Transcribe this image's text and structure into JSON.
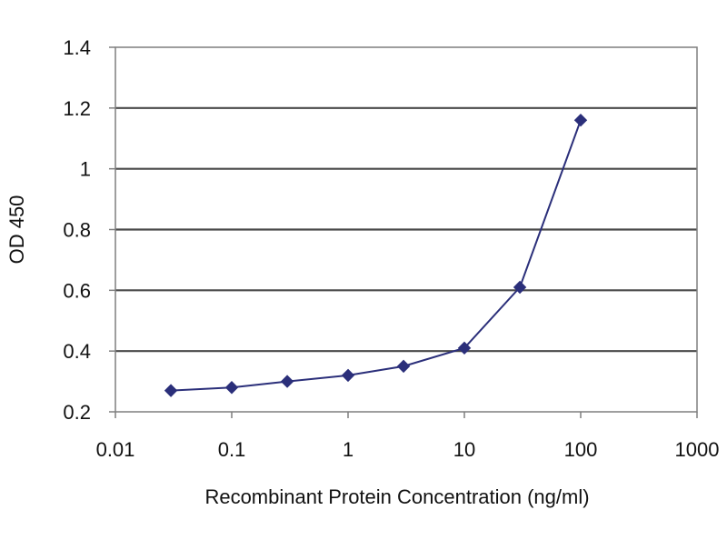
{
  "chart_data": {
    "type": "line",
    "title": "",
    "xlabel": "Recombinant Protein Concentration (ng/ml)",
    "ylabel": "OD 450",
    "xscale": "log",
    "xlim": [
      0.01,
      1000
    ],
    "ylim": [
      0.2,
      1.4
    ],
    "xticks": [
      0.01,
      0.1,
      1,
      10,
      100,
      1000
    ],
    "xtick_labels": [
      "0.01",
      "0.1",
      "1",
      "10",
      "100",
      "1000"
    ],
    "yticks": [
      0.2,
      0.4,
      0.6,
      0.8,
      1.0,
      1.2,
      1.4
    ],
    "ytick_labels": [
      "0.2",
      "0.4",
      "0.6",
      "0.8",
      "1",
      "1.2",
      "1.4"
    ],
    "grid": "horizontal",
    "legend": "none",
    "series": [
      {
        "color": "#2b2f7a",
        "marker": "diamond",
        "x": [
          0.03,
          0.1,
          0.3,
          1,
          3,
          10,
          30,
          100
        ],
        "y": [
          0.27,
          0.28,
          0.3,
          0.32,
          0.35,
          0.41,
          0.61,
          1.16
        ]
      }
    ]
  }
}
